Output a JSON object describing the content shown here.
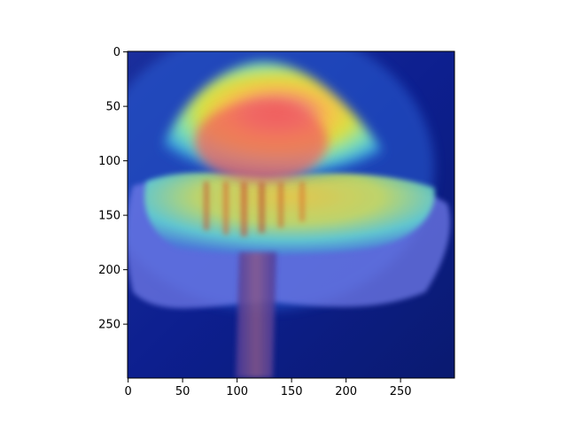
{
  "chart_data": {
    "type": "heatmap",
    "description_kind": "image-overlay",
    "colormap": "jet",
    "xlim": [
      0,
      299
    ],
    "ylim": [
      299,
      0
    ],
    "x_ticks": [
      0,
      50,
      100,
      150,
      200,
      250
    ],
    "y_ticks": [
      0,
      50,
      100,
      150,
      200,
      250
    ],
    "title": "",
    "xlabel": "",
    "ylabel": "",
    "grid": false,
    "colors": {
      "frame": "#000000",
      "background": "#ffffff"
    }
  }
}
